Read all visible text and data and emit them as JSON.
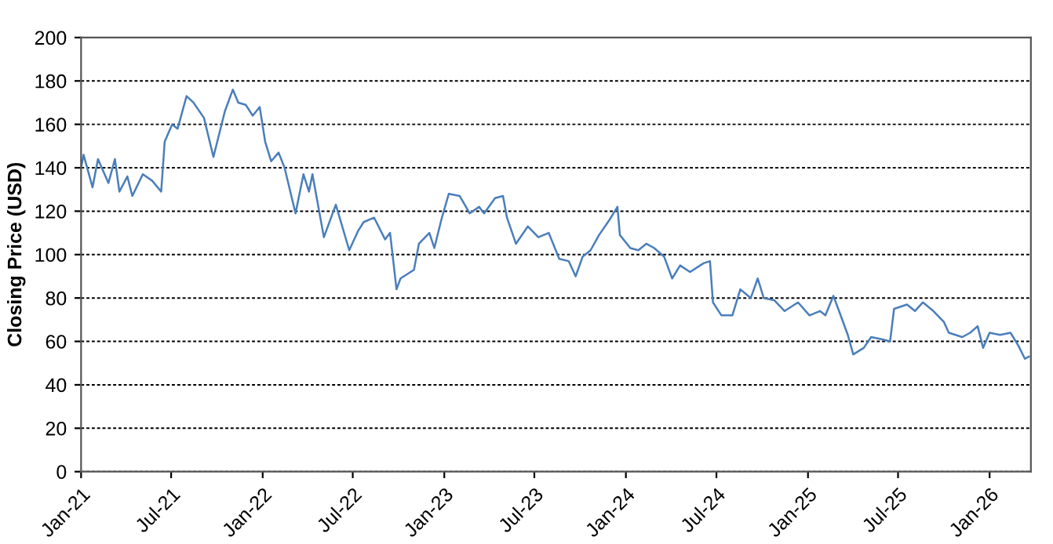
{
  "chart_data": {
    "type": "line",
    "ylabel": "Closing Price (USD)",
    "x": [
      "2021-01-01",
      "2021-01-06",
      "2021-01-24",
      "2021-02-04",
      "2021-02-25",
      "2021-03-10",
      "2021-03-19",
      "2021-04-04",
      "2021-04-14",
      "2021-05-05",
      "2021-05-24",
      "2021-06-11",
      "2021-06-18",
      "2021-07-03",
      "2021-07-14",
      "2021-08-01",
      "2021-08-15",
      "2021-09-05",
      "2021-09-24",
      "2021-10-17",
      "2021-11-02",
      "2021-11-13",
      "2021-11-28",
      "2021-12-12",
      "2021-12-26",
      "2022-01-06",
      "2022-01-18",
      "2022-02-02",
      "2022-02-14",
      "2022-03-08",
      "2022-03-24",
      "2022-04-04",
      "2022-04-11",
      "2022-05-04",
      "2022-05-28",
      "2022-06-24",
      "2022-07-12",
      "2022-07-23",
      "2022-08-13",
      "2022-09-04",
      "2022-09-14",
      "2022-09-27",
      "2022-10-05",
      "2022-11-01",
      "2022-11-11",
      "2022-12-02",
      "2022-12-12",
      "2022-12-26",
      "2023-01-10",
      "2023-02-01",
      "2023-02-21",
      "2023-03-12",
      "2023-03-22",
      "2023-04-13",
      "2023-04-29",
      "2023-05-07",
      "2023-05-25",
      "2023-06-18",
      "2023-07-09",
      "2023-07-30",
      "2023-08-20",
      "2023-09-08",
      "2023-09-22",
      "2023-10-06",
      "2023-10-22",
      "2023-11-08",
      "2023-11-29",
      "2023-12-15",
      "2023-12-20",
      "2024-01-10",
      "2024-01-26",
      "2024-02-11",
      "2024-02-27",
      "2024-03-18",
      "2024-04-03",
      "2024-04-19",
      "2024-05-09",
      "2024-06-05",
      "2024-06-18",
      "2024-06-24",
      "2024-07-11",
      "2024-08-02",
      "2024-08-18",
      "2024-09-08",
      "2024-09-22",
      "2024-10-04",
      "2024-10-25",
      "2024-11-15",
      "2024-12-12",
      "2025-01-04",
      "2025-01-25",
      "2025-02-05",
      "2025-02-21",
      "2025-03-06",
      "2025-03-22",
      "2025-04-02",
      "2025-04-23",
      "2025-05-08",
      "2025-05-29",
      "2025-06-15",
      "2025-06-23",
      "2025-07-19",
      "2025-08-04",
      "2025-08-20",
      "2025-09-10",
      "2025-10-01",
      "2025-10-11",
      "2025-11-07",
      "2025-11-23",
      "2025-12-08",
      "2025-12-19",
      "2026-01-01",
      "2026-01-22",
      "2026-02-12",
      "2026-02-28",
      "2026-03-13",
      "2026-03-21"
    ],
    "series": [
      {
        "color": "#4a7ebb",
        "values": [
          140,
          146,
          131,
          144,
          133,
          144,
          129,
          136,
          127,
          137,
          134,
          129,
          152,
          160,
          158,
          173,
          170,
          163,
          145,
          166,
          176,
          170,
          169,
          164,
          168,
          152,
          143,
          147,
          140,
          119,
          137,
          129,
          137,
          108,
          123,
          102,
          111,
          115,
          117,
          107,
          110,
          84,
          89,
          93,
          105,
          110,
          103,
          116,
          128,
          127,
          119,
          122,
          119,
          126,
          127,
          117,
          105,
          113,
          108,
          110,
          98,
          97,
          90,
          99,
          102,
          109,
          116,
          122,
          109,
          103,
          102,
          105,
          103,
          99,
          89,
          95,
          92,
          96,
          97,
          78,
          72,
          72,
          84,
          80,
          89,
          80,
          79,
          74,
          78,
          72,
          74,
          72,
          81,
          73,
          63,
          54,
          57,
          62,
          61,
          60,
          75,
          77,
          74,
          78,
          74,
          69,
          64,
          62,
          64,
          67,
          57,
          64,
          63,
          64,
          58,
          52,
          53
        ]
      }
    ],
    "xlim": [
      "2021-01-01",
      "2026-03-25"
    ],
    "xticks": [
      {
        "value": "2021-01-01",
        "label": "Jan-21"
      },
      {
        "value": "2021-07-01",
        "label": "Jul-21"
      },
      {
        "value": "2022-01-01",
        "label": "Jan-22"
      },
      {
        "value": "2022-07-01",
        "label": "Jul-22"
      },
      {
        "value": "2023-01-01",
        "label": "Jan-23"
      },
      {
        "value": "2023-07-01",
        "label": "Jul-23"
      },
      {
        "value": "2024-01-01",
        "label": "Jan-24"
      },
      {
        "value": "2024-07-01",
        "label": "Jul-24"
      },
      {
        "value": "2025-01-01",
        "label": "Jan-25"
      },
      {
        "value": "2025-07-01",
        "label": "Jul-25"
      },
      {
        "value": "2026-01-01",
        "label": "Jan-26"
      }
    ],
    "ylim": [
      0,
      200
    ],
    "yticks": [
      0,
      20,
      40,
      60,
      80,
      100,
      120,
      140,
      160,
      180,
      200
    ],
    "grid": "y",
    "marker": "none",
    "line_style": "solid",
    "legend": false
  }
}
